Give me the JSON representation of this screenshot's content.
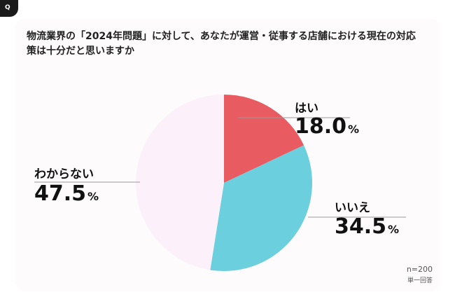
{
  "corner_icon": "q-glyph",
  "question": "物流業界の「2024年問題」に対して、あなたが運営・従事する店舗における現在の対応策は十分だと思いますか",
  "note": {
    "sample_size": "n=200",
    "answer_type": "単一回答"
  },
  "chart_data": {
    "type": "pie",
    "title": "",
    "categories": [
      "はい",
      "いいえ",
      "わからない"
    ],
    "values": [
      18.0,
      34.5,
      47.5
    ],
    "value_labels": [
      "18.0",
      "34.5",
      "47.5"
    ],
    "unit": "%",
    "colors": [
      "#e85b60",
      "#6ccfdd",
      "#fcf1fa"
    ],
    "start_angle": "12 o'clock",
    "direction": "clockwise",
    "legend": "none"
  }
}
